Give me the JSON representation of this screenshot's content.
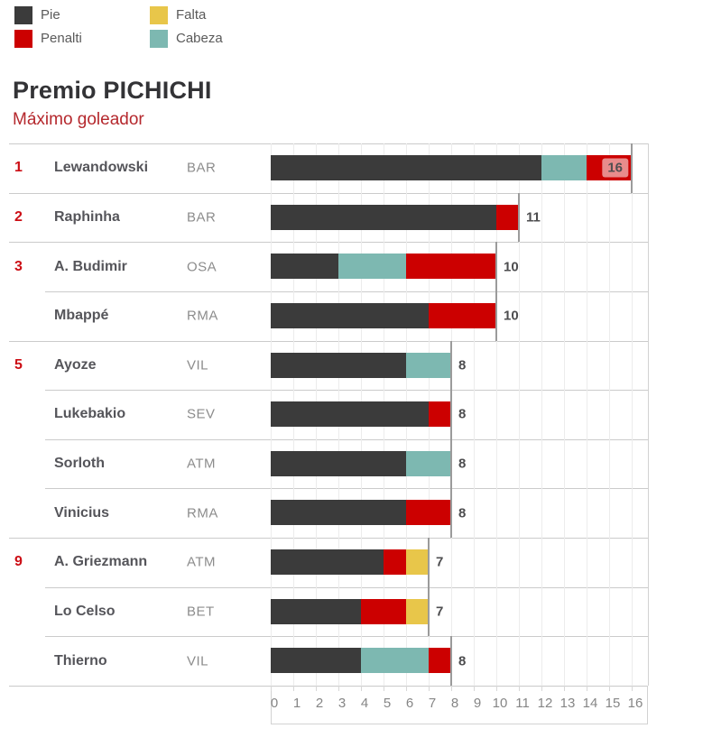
{
  "header": {
    "title": "Premio PICHICHI",
    "subtitle": "Máximo goleador"
  },
  "legend": {
    "items": [
      {
        "id": "pie",
        "label": "Pie",
        "color": "#3b3b3b"
      },
      {
        "id": "penalti",
        "label": "Penalti",
        "color": "#cc0000"
      },
      {
        "id": "falta",
        "label": "Falta",
        "color": "#e8c64a"
      },
      {
        "id": "cabeza",
        "label": "Cabeza",
        "color": "#7db8b1"
      }
    ]
  },
  "chart_data": {
    "type": "bar",
    "stacked": true,
    "orientation": "horizontal",
    "title": "Premio PICHICHI",
    "subtitle": "Máximo goleador",
    "goal_type_colors": {
      "pie": "#3b3b3b",
      "cabeza": "#7db8b1",
      "penalti": "#cc0000",
      "falta": "#e8c64a"
    },
    "x_axis": {
      "min": 0,
      "max": 16,
      "tick_labels": [
        "0",
        "1",
        "2",
        "3",
        "4",
        "5",
        "6",
        "7",
        "8",
        "9",
        "10",
        "11",
        "12",
        "13",
        "14",
        "15",
        "16"
      ],
      "grid": true
    },
    "players": [
      {
        "rank": "1",
        "name": "Lewandowski",
        "team": "BAR",
        "total": 16,
        "highlight": true,
        "segments": [
          {
            "type": "pie",
            "value": 12
          },
          {
            "type": "cabeza",
            "value": 2
          },
          {
            "type": "penalti",
            "value": 2
          }
        ]
      },
      {
        "rank": "2",
        "name": "Raphinha",
        "team": "BAR",
        "total": 11,
        "highlight": false,
        "segments": [
          {
            "type": "pie",
            "value": 10
          },
          {
            "type": "penalti",
            "value": 1
          }
        ]
      },
      {
        "rank": "3",
        "name": "A. Budimir",
        "team": "OSA",
        "total": 10,
        "highlight": false,
        "segments": [
          {
            "type": "pie",
            "value": 3
          },
          {
            "type": "cabeza",
            "value": 3
          },
          {
            "type": "penalti",
            "value": 4
          }
        ]
      },
      {
        "rank": "",
        "name": "Mbappé",
        "team": "RMA",
        "total": 10,
        "highlight": false,
        "segments": [
          {
            "type": "pie",
            "value": 7
          },
          {
            "type": "penalti",
            "value": 3
          }
        ]
      },
      {
        "rank": "5",
        "name": "Ayoze",
        "team": "VIL",
        "total": 8,
        "highlight": false,
        "segments": [
          {
            "type": "pie",
            "value": 6
          },
          {
            "type": "cabeza",
            "value": 2
          }
        ]
      },
      {
        "rank": "",
        "name": "Lukebakio",
        "team": "SEV",
        "total": 8,
        "highlight": false,
        "segments": [
          {
            "type": "pie",
            "value": 7
          },
          {
            "type": "penalti",
            "value": 1
          }
        ]
      },
      {
        "rank": "",
        "name": "Sorloth",
        "team": "ATM",
        "total": 8,
        "highlight": false,
        "segments": [
          {
            "type": "pie",
            "value": 6
          },
          {
            "type": "cabeza",
            "value": 2
          }
        ]
      },
      {
        "rank": "",
        "name": "Vinicius",
        "team": "RMA",
        "total": 8,
        "highlight": false,
        "segments": [
          {
            "type": "pie",
            "value": 6
          },
          {
            "type": "penalti",
            "value": 2
          }
        ]
      },
      {
        "rank": "9",
        "name": "A. Griezmann",
        "team": "ATM",
        "total": 7,
        "highlight": false,
        "segments": [
          {
            "type": "pie",
            "value": 5
          },
          {
            "type": "penalti",
            "value": 1
          },
          {
            "type": "falta",
            "value": 1
          }
        ]
      },
      {
        "rank": "",
        "name": "Lo Celso",
        "team": "BET",
        "total": 7,
        "highlight": false,
        "segments": [
          {
            "type": "pie",
            "value": 4
          },
          {
            "type": "penalti",
            "value": 2
          },
          {
            "type": "falta",
            "value": 1
          }
        ]
      },
      {
        "rank": "",
        "name": "Thierno",
        "team": "VIL",
        "total": 8,
        "highlight": false,
        "segments": [
          {
            "type": "pie",
            "value": 4
          },
          {
            "type": "cabeza",
            "value": 3
          },
          {
            "type": "penalti",
            "value": 1
          }
        ]
      }
    ]
  }
}
